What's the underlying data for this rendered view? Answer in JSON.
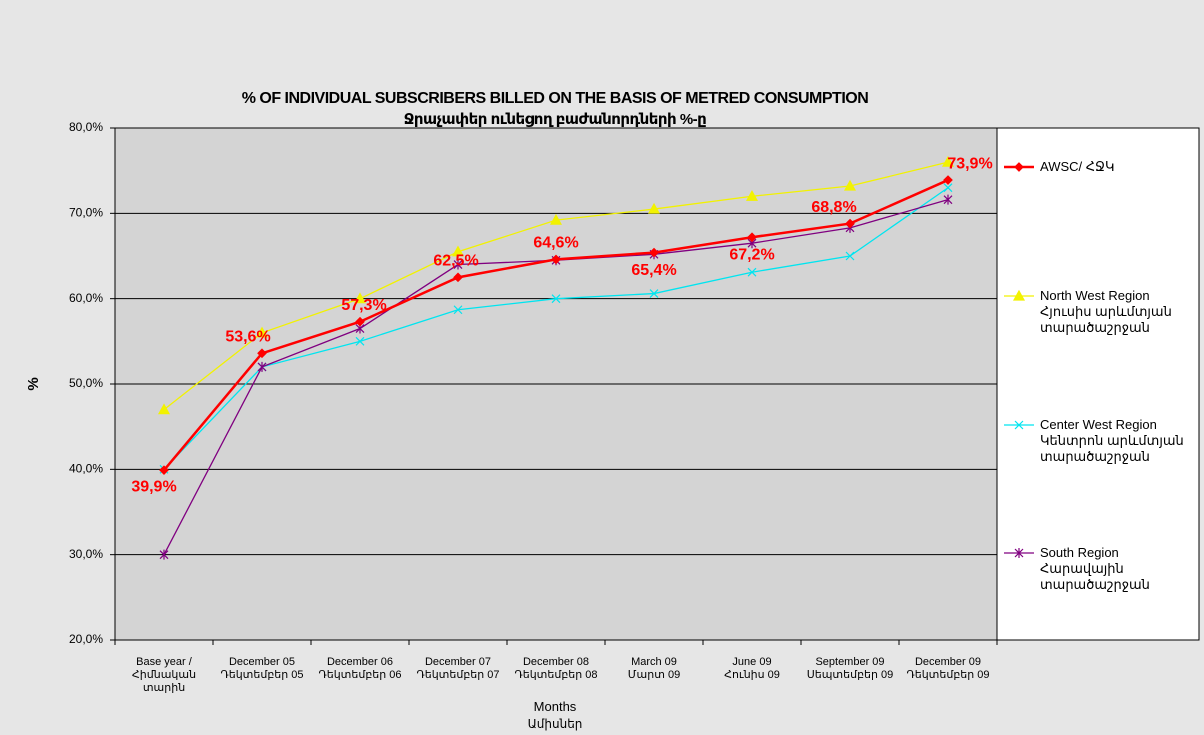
{
  "chart_data": {
    "type": "line",
    "title": "% OF INDIVIDUAL SUBSCRIBERS BILLED ON THE BASIS OF METRED CONSUMPTION",
    "subtitle": "Ջրաչափեր ունեցող բաժանորդների %-ը",
    "y_label": "%",
    "x_label": "Months",
    "x_sublabel": "Ամիսներ",
    "categories": [
      "Base year / Հիմնական տարին",
      "December 05 Դեկտեմբեր 05",
      "December 06 Դեկտեմբեր 06",
      "December 07 Դեկտեմբեր 07",
      "December 08 Դեկտեմբեր 08",
      "March 09 Մարտ 09",
      "June 09 Հունիս 09",
      "September 09 Սեպտեմբեր 09",
      "December 09 Դեկտեմբեր 09"
    ],
    "ylim": [
      20,
      80
    ],
    "yticks": [
      {
        "value": 20,
        "label": "20,0%"
      },
      {
        "value": 30,
        "label": "30,0%"
      },
      {
        "value": 40,
        "label": "40,0%"
      },
      {
        "value": 50,
        "label": "50,0%"
      },
      {
        "value": 60,
        "label": "60,0%"
      },
      {
        "value": 70,
        "label": "70,0%"
      },
      {
        "value": 80,
        "label": "80,0%"
      }
    ],
    "grid": true,
    "legend": "right",
    "series": [
      {
        "name": "AWSC/ ՀՋԿ",
        "color": "#ff0000",
        "marker": "diamond",
        "values": [
          39.9,
          53.6,
          57.3,
          62.5,
          64.6,
          65.4,
          67.2,
          68.8,
          73.9
        ],
        "value_labels": [
          "39,9%",
          "53,6%",
          "57,3%",
          "62,5%",
          "64,6%",
          "65,4%",
          "67,2%",
          "68,8%",
          "73,9%"
        ]
      },
      {
        "name": "North West Region Հյուսիս արևմտյան տարածաշրջան",
        "color": "#f2f200",
        "marker": "triangle",
        "values": [
          47,
          56,
          60,
          65.5,
          69.2,
          70.5,
          72,
          73.2,
          76
        ]
      },
      {
        "name": "Center West Region Կենտրոն արևմտյան տարածաշրջան",
        "color": "#00e5f0",
        "marker": "x",
        "values": [
          40,
          52,
          55,
          58.7,
          60,
          60.6,
          63.1,
          65,
          73
        ]
      },
      {
        "name": "South Region Հարավային տարածաշրջան",
        "color": "#800080",
        "marker": "star",
        "values": [
          30,
          52,
          56.5,
          64,
          64.5,
          65.2,
          66.5,
          68.3,
          71.6
        ]
      }
    ]
  }
}
